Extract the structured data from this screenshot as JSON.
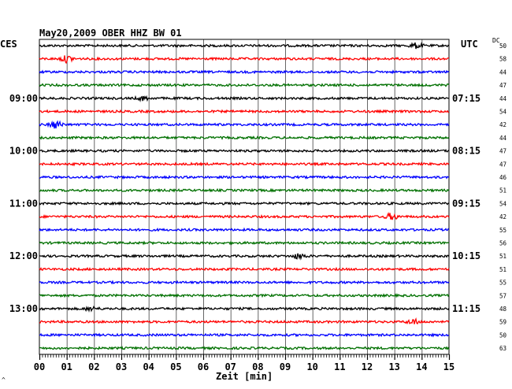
{
  "header": {
    "title": "May20,2009   OBER HHZ BW 01",
    "left_tz": "CES",
    "right_tz": "UTC",
    "dc_label": "DC",
    "xlabel": "Zeit [min]",
    "corner_mark": "^"
  },
  "colors": {
    "trace_cycle": [
      "#000000",
      "#ff0000",
      "#0000ff",
      "#007000"
    ],
    "grid": "#000000"
  },
  "chart_data": {
    "type": "line",
    "title": "May20,2009   OBER HHZ BW 01",
    "xlabel": "Zeit [min]",
    "xlim": [
      0,
      15
    ],
    "x_ticks": [
      "00",
      "01",
      "02",
      "03",
      "04",
      "05",
      "06",
      "07",
      "08",
      "09",
      "10",
      "11",
      "12",
      "13",
      "14",
      "15"
    ],
    "rows": 24,
    "left_time_labels": [
      {
        "row": 4,
        "text": "09:00"
      },
      {
        "row": 8,
        "text": "10:00"
      },
      {
        "row": 12,
        "text": "11:00"
      },
      {
        "row": 16,
        "text": "12:00"
      },
      {
        "row": 20,
        "text": "13:00"
      }
    ],
    "right_time_labels": [
      {
        "row": 4,
        "text": "07:15"
      },
      {
        "row": 8,
        "text": "08:15"
      },
      {
        "row": 12,
        "text": "09:15"
      },
      {
        "row": 16,
        "text": "10:15"
      },
      {
        "row": 20,
        "text": "11:15"
      }
    ],
    "dc_offsets": [
      50,
      58,
      44,
      47,
      44,
      54,
      42,
      44,
      47,
      47,
      46,
      51,
      54,
      42,
      55,
      56,
      51,
      51,
      55,
      57,
      48,
      59,
      50,
      63
    ],
    "events": [
      {
        "row": 0,
        "x": 13.8,
        "strength": 2.0
      },
      {
        "row": 1,
        "x": 1.0,
        "strength": 2.5
      },
      {
        "row": 4,
        "x": 3.8,
        "strength": 1.5
      },
      {
        "row": 6,
        "x": 0.6,
        "strength": 3.0
      },
      {
        "row": 13,
        "x": 12.9,
        "strength": 2.5
      },
      {
        "row": 16,
        "x": 9.5,
        "strength": 2.0
      },
      {
        "row": 20,
        "x": 1.9,
        "strength": 1.5
      },
      {
        "row": 21,
        "x": 13.7,
        "strength": 2.0
      }
    ]
  }
}
